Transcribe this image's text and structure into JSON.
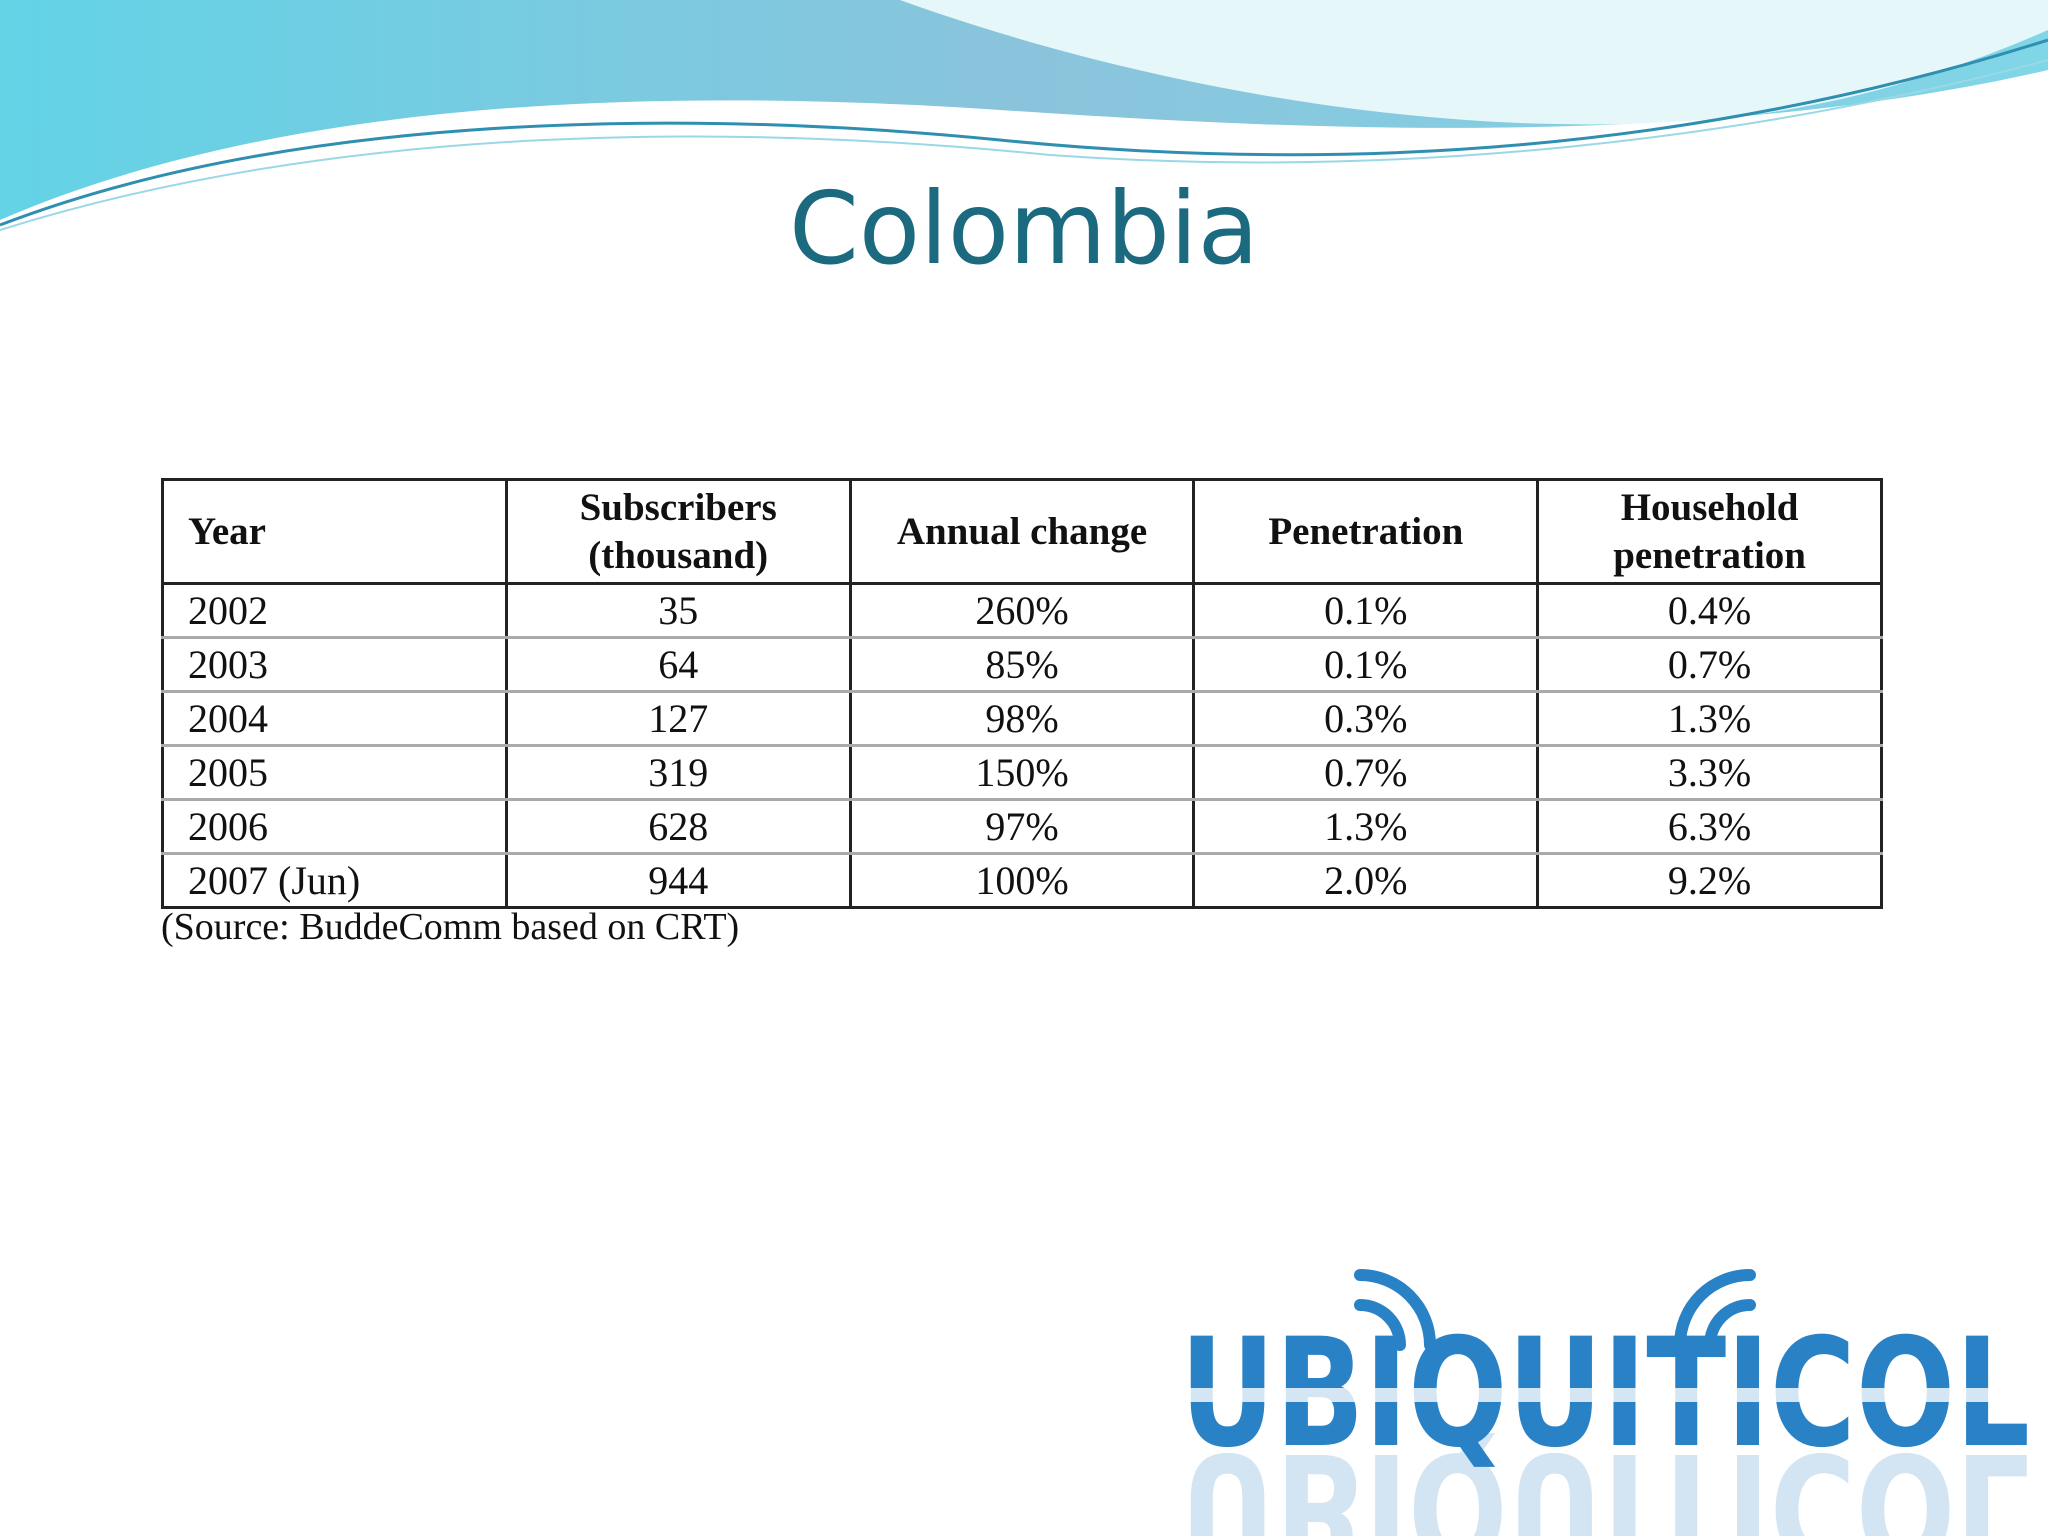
{
  "title": "Colombia",
  "table": {
    "header": [
      "Year",
      "Subscribers (thousand)",
      "Annual change",
      "Penetration",
      "Household penetration"
    ],
    "rows": [
      [
        "2002",
        "35",
        "260%",
        "0.1%",
        "0.4%"
      ],
      [
        "2003",
        "64",
        "85%",
        "0.1%",
        "0.7%"
      ],
      [
        "2004",
        "127",
        "98%",
        "0.3%",
        "1.3%"
      ],
      [
        "2005",
        "319",
        "150%",
        "0.7%",
        "3.3%"
      ],
      [
        "2006",
        "628",
        "97%",
        "1.3%",
        "6.3%"
      ],
      [
        "2007 (Jun)",
        "944",
        "100%",
        "2.0%",
        "9.2%"
      ]
    ],
    "source": "(Source: BuddeComm based on CRT)"
  },
  "logo": "UBIQUITICOL"
}
